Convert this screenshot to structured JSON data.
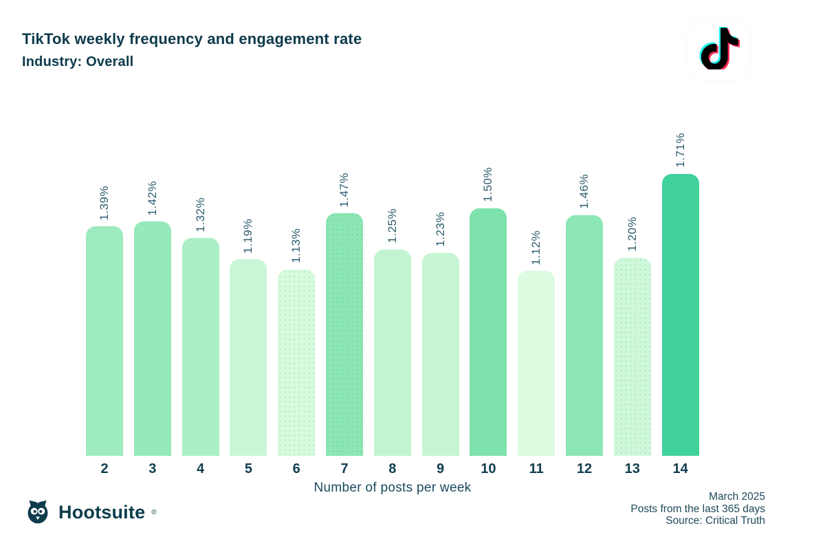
{
  "header": {
    "title": "TikTok weekly frequency and engagement rate",
    "subtitle": "Industry: Overall"
  },
  "icons": {
    "tiktok_logo": "tiktok-note-icon",
    "hootsuite_owl": "hootsuite-owl-icon"
  },
  "colors": {
    "text_dark": "#0d3a4b",
    "tick_label": "#103d4f",
    "bar_label": "#2d5c6e",
    "tiktok_cyan": "#25f4ee",
    "tiktok_pink": "#fe2c55",
    "tiktok_black": "#010101",
    "brand_dark": "#0d3c4b"
  },
  "chart_data": {
    "type": "bar",
    "title": "TikTok weekly frequency and engagement rate",
    "subtitle": "Industry: Overall",
    "xlabel": "Number of posts per week",
    "ylabel": "",
    "categories": [
      "2",
      "3",
      "4",
      "5",
      "6",
      "7",
      "8",
      "9",
      "10",
      "11",
      "12",
      "13",
      "14"
    ],
    "values": [
      1.39,
      1.42,
      1.32,
      1.19,
      1.13,
      1.47,
      1.25,
      1.23,
      1.5,
      1.12,
      1.46,
      1.2,
      1.71
    ],
    "data_labels": [
      "1.39%",
      "1.42%",
      "1.32%",
      "1.19%",
      "1.13%",
      "1.47%",
      "1.25%",
      "1.23%",
      "1.50%",
      "1.12%",
      "1.46%",
      "1.20%",
      "1.71%"
    ],
    "bar_colors": [
      "#9debbf",
      "#95e9bb",
      "#abefc7",
      "#c9f6d7",
      "#d8fadd",
      "#8ce6b4",
      "#c3f4d2",
      "#c6f5d4",
      "#7ee2ac",
      "#dcfbe0",
      "#8de6b6",
      "#cff8da",
      "#41d19a"
    ],
    "dotted": [
      false,
      false,
      false,
      false,
      true,
      true,
      false,
      false,
      false,
      false,
      false,
      true,
      false
    ],
    "value_unit": "%",
    "label_rotation": -90,
    "ylim": [
      0,
      1.8
    ],
    "grid": false,
    "legend": false
  },
  "footer": {
    "brand": "Hootsuite",
    "brand_reg": "®",
    "lines": [
      "March 2025",
      "Posts from the last 365 days",
      "Source: Critical Truth"
    ]
  }
}
